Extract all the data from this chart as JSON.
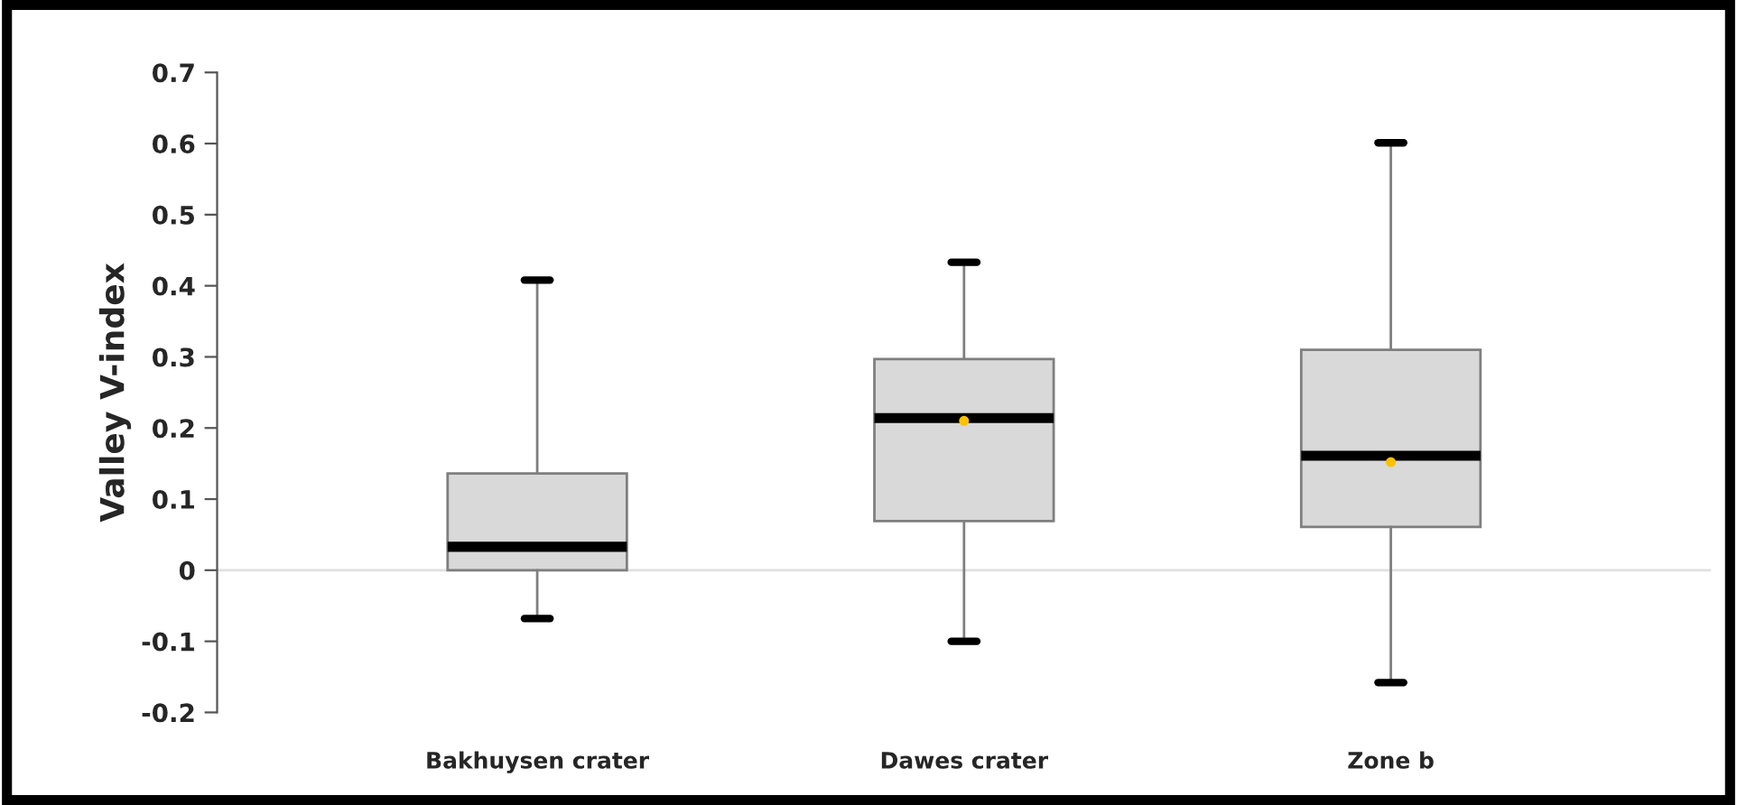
{
  "chart_data": {
    "type": "box",
    "ylabel": "Valley V-index",
    "categories": [
      "Bakhuysen crater",
      "Dawes crater",
      "Zone b"
    ],
    "boxes": [
      {
        "low": -0.068,
        "q1": 0.0,
        "median": 0.033,
        "q3": 0.136,
        "high": 0.408
      },
      {
        "low": -0.1,
        "q1": 0.069,
        "median": 0.214,
        "q3": 0.297,
        "high": 0.433,
        "mean": 0.21
      },
      {
        "low": -0.158,
        "q1": 0.061,
        "median": 0.161,
        "q3": 0.31,
        "high": 0.601,
        "mean": 0.152
      }
    ],
    "color": "#d9d9d9",
    "ylim": [
      -0.2,
      0.7
    ],
    "yticks": [
      -0.2,
      -0.1,
      0,
      0.1,
      0.2,
      0.3,
      0.4,
      0.5,
      0.6,
      0.7
    ],
    "ref_lines": [
      {
        "axis": "y",
        "value": 0,
        "color": "#e0e0e0"
      }
    ],
    "grid": false,
    "legend": false
  }
}
